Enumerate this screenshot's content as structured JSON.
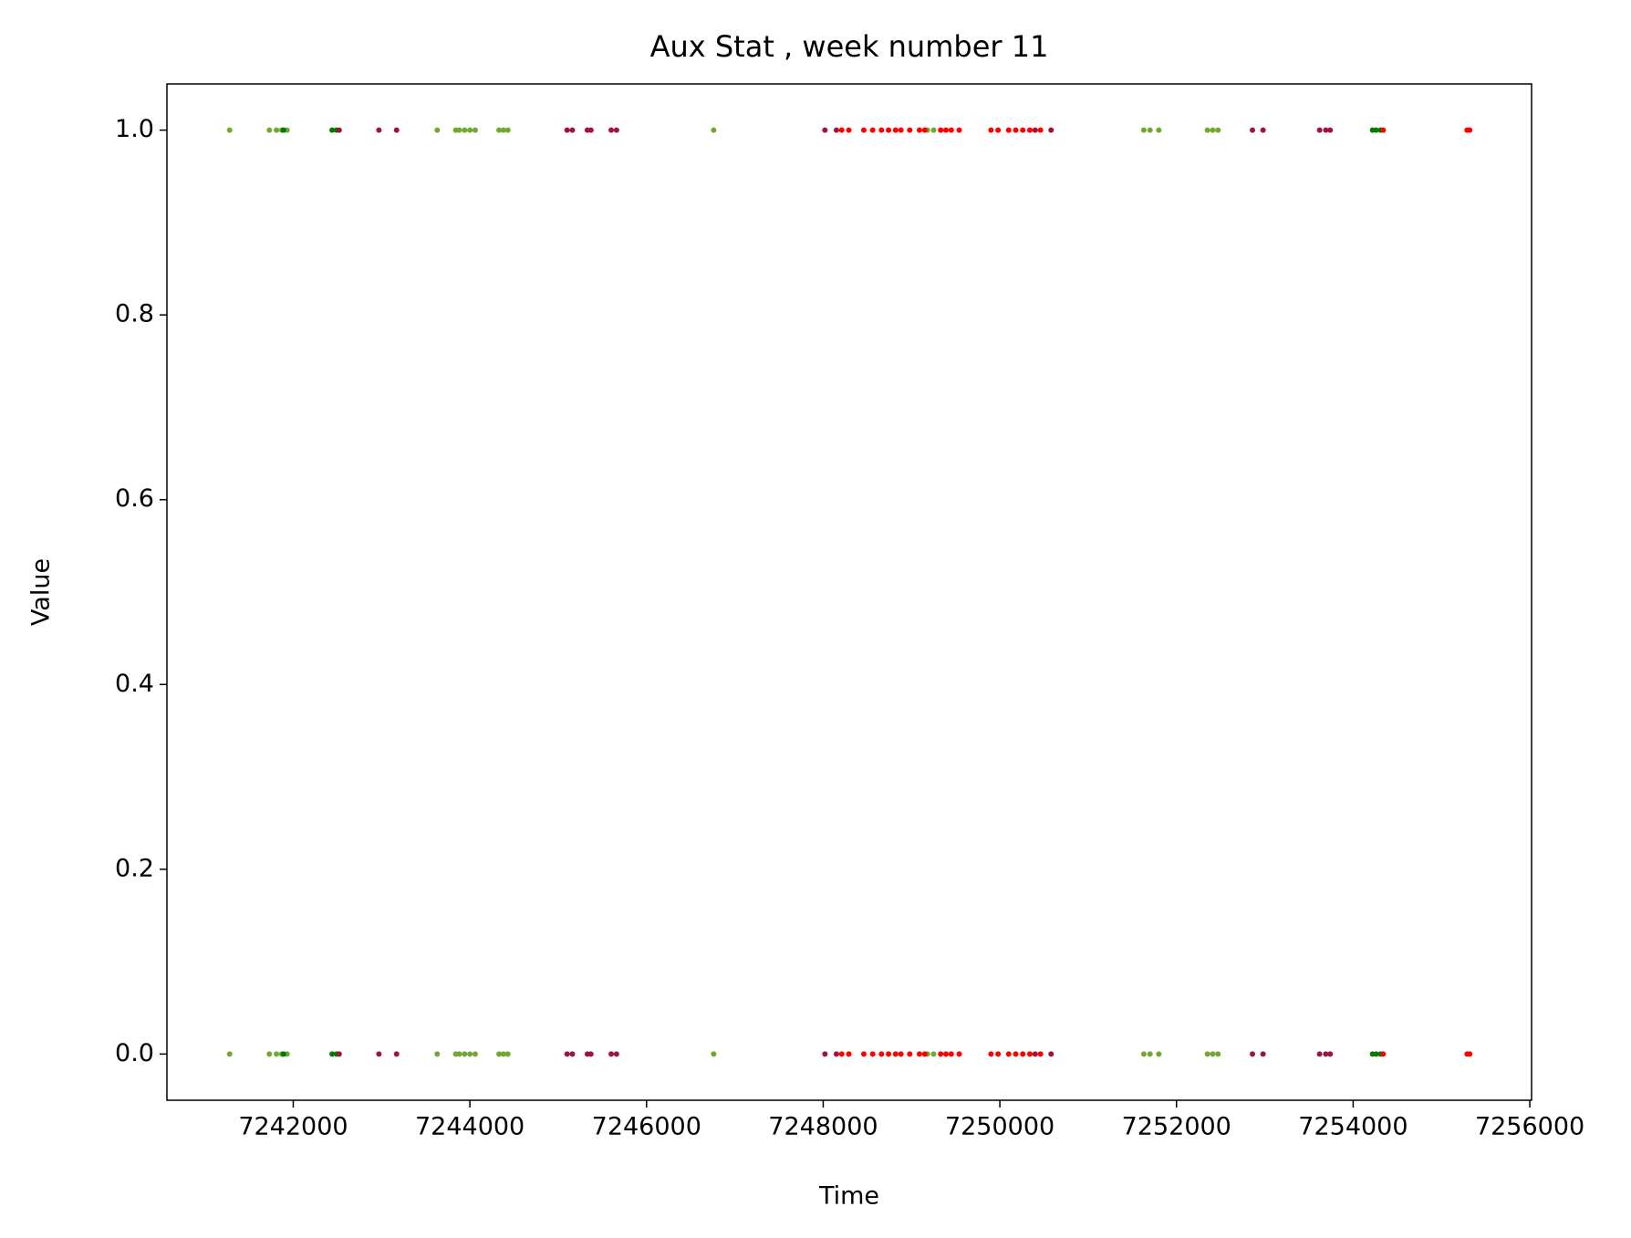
{
  "chart_data": {
    "type": "scatter",
    "title": "Aux Stat , week number 11",
    "x_label": "Time",
    "y_label": "Value",
    "xlim": [
      7240570,
      7256020
    ],
    "ylim": [
      -0.05,
      1.05
    ],
    "xticks": [
      7242000,
      7244000,
      7246000,
      7248000,
      7250000,
      7252000,
      7254000,
      7256000
    ],
    "yticks": [
      {
        "value": 0,
        "label": "0.0"
      },
      0.2,
      0.4,
      0.6,
      0.8,
      {
        "value": 1,
        "label": "1.0"
      }
    ],
    "series": [
      {
        "color": "#72a832",
        "x": [
          7241280,
          7241730,
          7241810,
          7241870,
          7241930,
          7243630,
          7243840,
          7243880,
          7243940,
          7244000,
          7244060,
          7244330,
          7244380,
          7244430,
          7246760,
          7249180,
          7249250,
          7251630,
          7251700,
          7251800,
          7252350,
          7252410,
          7252470,
          7241280,
          7241730,
          7241810,
          7241870,
          7241930,
          7243630,
          7243840,
          7243880,
          7243940,
          7244000,
          7244060,
          7244330,
          7244380,
          7244430,
          7246760,
          7249180,
          7249250,
          7251630,
          7251700,
          7251800,
          7252350,
          7252410,
          7252470
        ],
        "values": [
          1,
          1,
          1,
          1,
          1,
          1,
          1,
          1,
          1,
          1,
          1,
          1,
          1,
          1,
          1,
          1,
          1,
          1,
          1,
          1,
          1,
          1,
          1,
          0,
          0,
          0,
          0,
          0,
          0,
          0,
          0,
          0,
          0,
          0,
          0,
          0,
          0,
          0,
          0,
          0,
          0,
          0,
          0,
          0,
          0,
          0
        ]
      },
      {
        "color": "#007a00",
        "x": [
          7241890,
          7242440,
          7242490,
          7254220,
          7254260,
          7254310,
          7241890,
          7242440,
          7242490,
          7254220,
          7254260,
          7254310
        ],
        "values": [
          1,
          1,
          1,
          1,
          1,
          1,
          0,
          0,
          0,
          0,
          0,
          0
        ]
      },
      {
        "color": "#a0143c",
        "x": [
          7242520,
          7242970,
          7243170,
          7245100,
          7245160,
          7245330,
          7245370,
          7245600,
          7245660,
          7248020,
          7248150,
          7250400,
          7250580,
          7252860,
          7252980,
          7253620,
          7253690,
          7253740,
          7242520,
          7242970,
          7243170,
          7245100,
          7245160,
          7245330,
          7245370,
          7245600,
          7245660,
          7248020,
          7248150,
          7250400,
          7250580,
          7252860,
          7252980,
          7253620,
          7253690,
          7253740
        ],
        "values": [
          1,
          1,
          1,
          1,
          1,
          1,
          1,
          1,
          1,
          1,
          1,
          1,
          1,
          1,
          1,
          1,
          1,
          1,
          0,
          0,
          0,
          0,
          0,
          0,
          0,
          0,
          0,
          0,
          0,
          0,
          0,
          0,
          0,
          0,
          0,
          0
        ]
      },
      {
        "color": "#ff0000",
        "x": [
          7248210,
          7248290,
          7248460,
          7248560,
          7248660,
          7248740,
          7248820,
          7248880,
          7248980,
          7249090,
          7249150,
          7249330,
          7249390,
          7249450,
          7249540,
          7249900,
          7249980,
          7250100,
          7250180,
          7250260,
          7250340,
          7250460,
          7254340,
          7255290,
          7255320,
          7248210,
          7248290,
          7248460,
          7248560,
          7248660,
          7248740,
          7248820,
          7248880,
          7248980,
          7249090,
          7249150,
          7249330,
          7249390,
          7249450,
          7249540,
          7249900,
          7249980,
          7250100,
          7250180,
          7250260,
          7250340,
          7250460,
          7254340,
          7255290,
          7255320
        ],
        "values": [
          1,
          1,
          1,
          1,
          1,
          1,
          1,
          1,
          1,
          1,
          1,
          1,
          1,
          1,
          1,
          1,
          1,
          1,
          1,
          1,
          1,
          1,
          1,
          1,
          1,
          0,
          0,
          0,
          0,
          0,
          0,
          0,
          0,
          0,
          0,
          0,
          0,
          0,
          0,
          0,
          0,
          0,
          0,
          0,
          0,
          0,
          0,
          0,
          0,
          0
        ]
      }
    ]
  }
}
